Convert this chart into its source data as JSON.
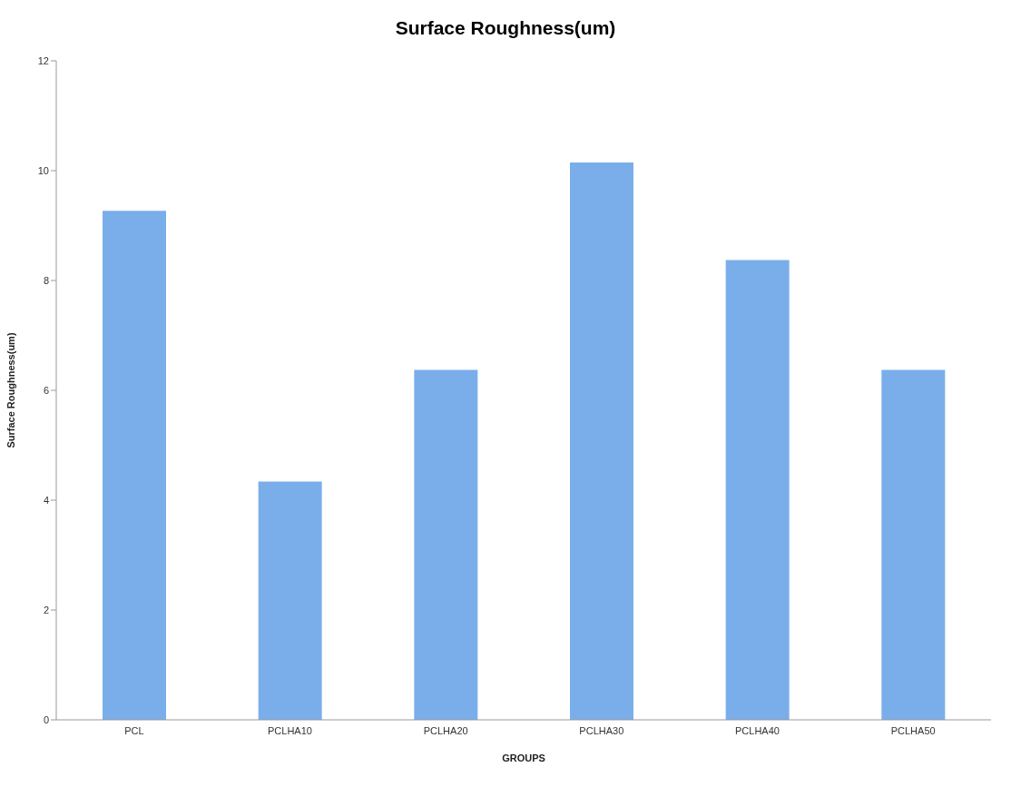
{
  "chart_data": {
    "type": "bar",
    "title": "Surface Roughness(um)",
    "xlabel": "GROUPS",
    "ylabel": "Surface Roughness(um)",
    "categories": [
      "PCL",
      "PCLHA10",
      "PCLHA20",
      "PCLHA30",
      "PCLHA40",
      "PCLHA50"
    ],
    "values": [
      9.27,
      4.34,
      6.37,
      10.15,
      8.37,
      6.37
    ],
    "color": "#7aaeea",
    "ylim": [
      0,
      12
    ],
    "yticks": [
      0,
      2,
      4,
      6,
      8,
      10,
      12
    ],
    "grid": false
  }
}
